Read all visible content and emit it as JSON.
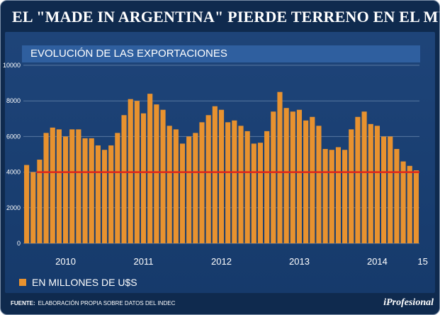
{
  "header": {
    "title": "EL \"MADE IN ARGENTINA\" PIERDE TERRENO EN EL MUNDO"
  },
  "legend": {
    "label": "EN MILLONES DE U$S"
  },
  "footer": {
    "source_prefix": "FUENTE:",
    "source_text": "ELABORACIÓN PROPIA SOBRE DATOS DEL INDEC"
  },
  "brand": "iProfesional",
  "colors": {
    "bar": "#e8922f",
    "reference_line": "#e0261b",
    "grid": "#8aa6c7",
    "panel": "#1e4479"
  },
  "chart_data": {
    "type": "bar",
    "title": "EVOLUCIÓN DE LAS EXPORTACIONES",
    "ylabel": "EN MILLONES DE U$S",
    "xlabel": "",
    "ylim": [
      0,
      10000
    ],
    "yticks": [
      0,
      2000,
      4000,
      6000,
      8000,
      10000
    ],
    "ytick_labels": [
      "0",
      "2000",
      "4000",
      "6000",
      "8000",
      "10000"
    ],
    "x_labels": [
      {
        "label": "2010",
        "index": 6
      },
      {
        "label": "2011",
        "index": 18
      },
      {
        "label": "2012",
        "index": 30
      },
      {
        "label": "2013",
        "index": 42
      },
      {
        "label": "2014",
        "index": 54
      },
      {
        "label": "15",
        "index": 61
      }
    ],
    "reference_line": {
      "value": 4000
    },
    "values": [
      4400,
      4000,
      4700,
      6200,
      6500,
      6400,
      6000,
      6400,
      6400,
      5900,
      5900,
      5500,
      5250,
      5500,
      6200,
      7200,
      8100,
      8000,
      7300,
      8400,
      7800,
      7500,
      6600,
      6400,
      5600,
      6000,
      6200,
      6800,
      7200,
      7700,
      7500,
      6800,
      6900,
      6600,
      6300,
      5600,
      5650,
      6300,
      7400,
      8500,
      7600,
      7400,
      7500,
      6900,
      7100,
      6600,
      5300,
      5250,
      5400,
      5250,
      6400,
      7100,
      7400,
      6700,
      6600,
      6000,
      6000,
      5300,
      4600,
      4350,
      4100
    ]
  }
}
